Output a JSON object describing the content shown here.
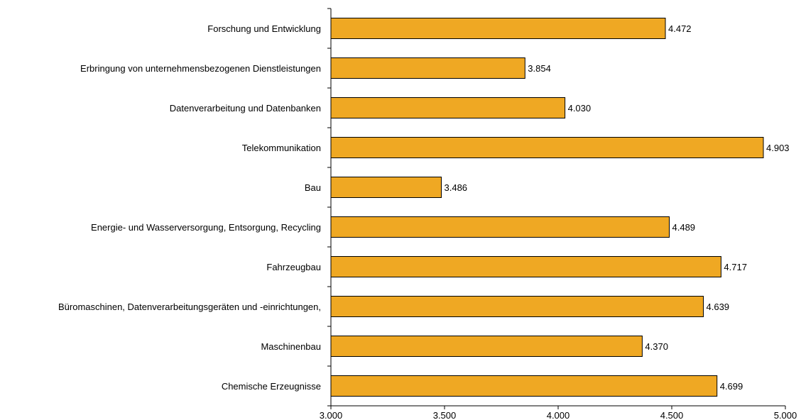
{
  "chart_data": {
    "type": "bar",
    "orientation": "horizontal",
    "categories": [
      "Forschung und Entwicklung",
      "Erbringung von unternehmensbezogenen Dienstleistungen",
      "Datenverarbeitung und Datenbanken",
      "Telekommunikation",
      "Bau",
      "Energie- und Wasserversorgung, Entsorgung, Recycling",
      "Fahrzeugbau",
      "Büromaschinen, Datenverarbeitungsgeräten und -einrichtungen,",
      "Maschinenbau",
      "Chemische Erzeugnisse"
    ],
    "values": [
      4472,
      3854,
      4030,
      4903,
      3486,
      4489,
      4717,
      4639,
      4370,
      4699
    ],
    "value_labels": [
      "4.472",
      "3.854",
      "4.030",
      "4.903",
      "3.486",
      "4.489",
      "4.717",
      "4.639",
      "4.370",
      "4.699"
    ],
    "xlim": [
      3000,
      5000
    ],
    "xticks": [
      3000,
      3500,
      4000,
      4500,
      5000
    ],
    "xtick_labels": [
      "3.000",
      "3.500",
      "4.000",
      "4.500",
      "5.000"
    ],
    "title": "",
    "xlabel": "",
    "ylabel": "",
    "grid": false,
    "legend": "none",
    "bar_color": "#EFA823",
    "bar_edge_color": "#000000"
  }
}
